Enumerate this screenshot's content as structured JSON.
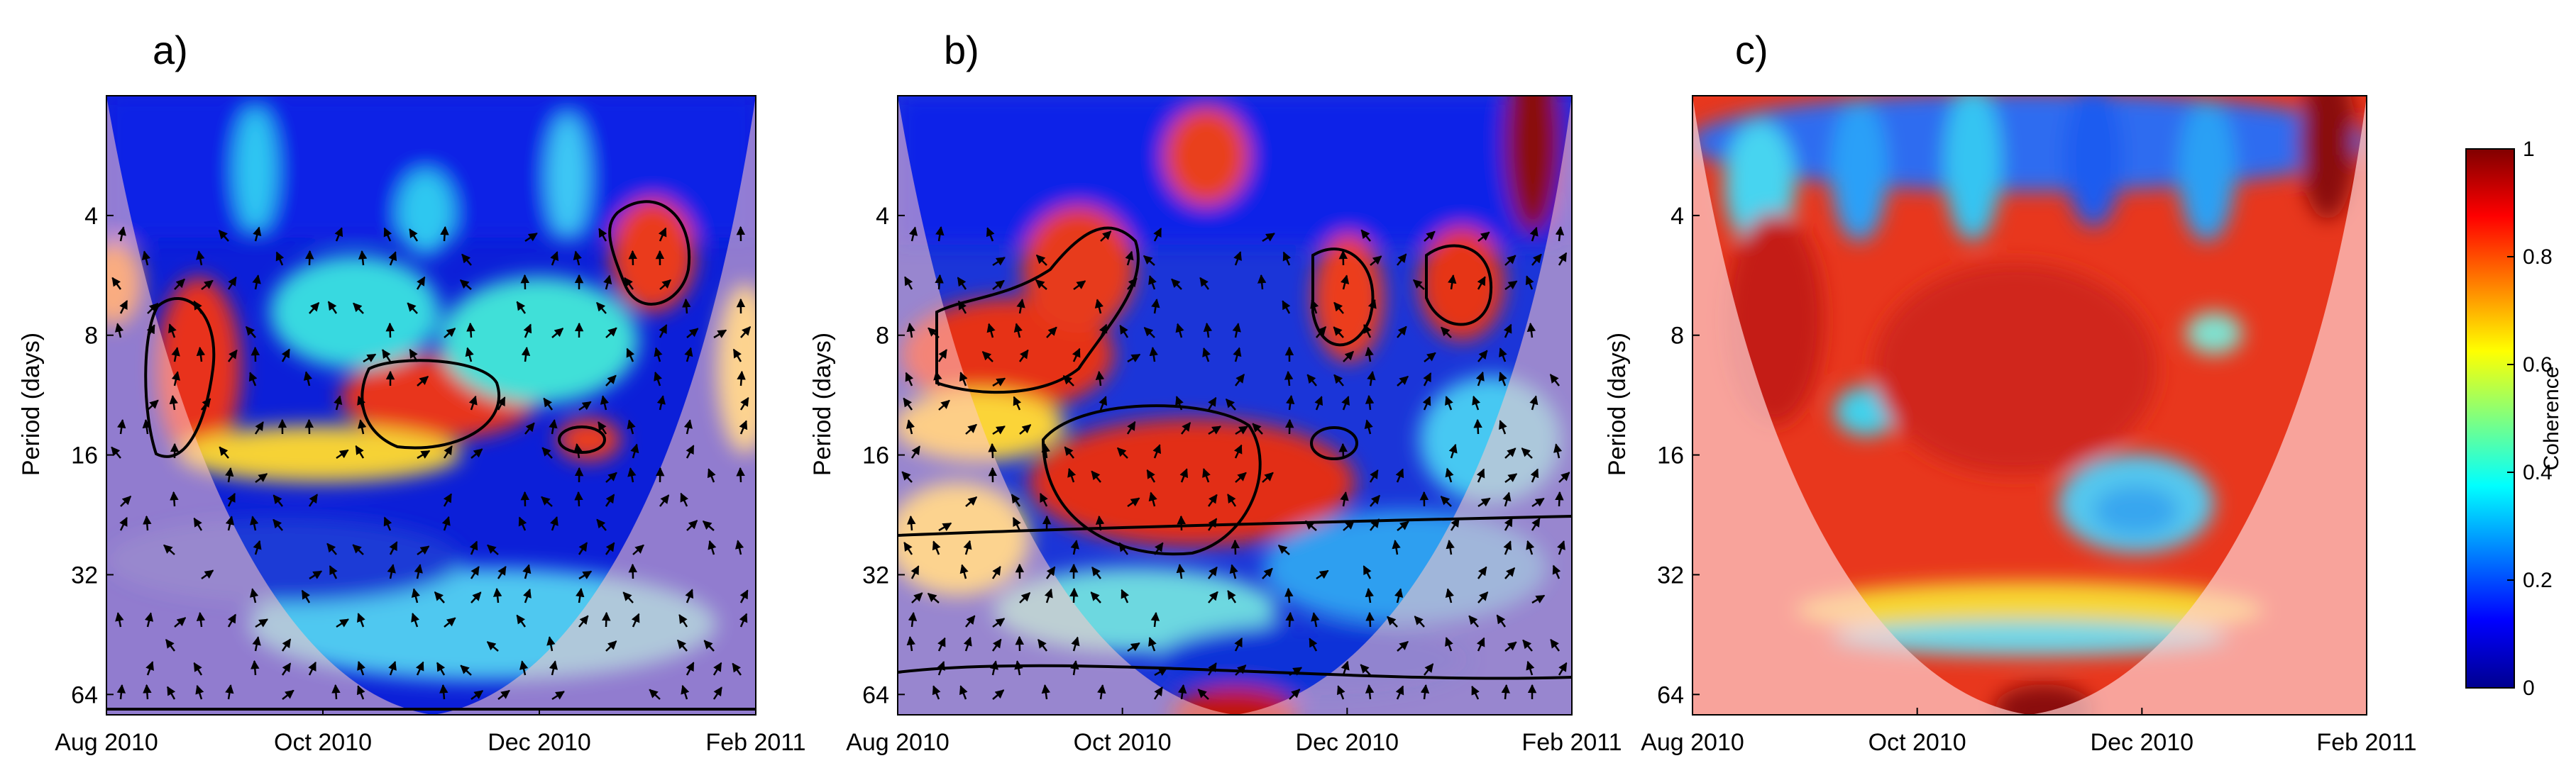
{
  "figure": {
    "panel_labels": [
      "a)",
      "b)",
      "c)"
    ]
  },
  "colorbar": {
    "label": "Coherence",
    "ticks": [
      "0",
      "0.2",
      "0.4",
      "0.6",
      "0.8",
      "1"
    ],
    "tick_values": [
      0,
      0.2,
      0.4,
      0.6,
      0.8,
      1
    ],
    "colormap": "jet"
  },
  "chart_data": [
    {
      "type": "heatmap",
      "title": "",
      "panel_label": "a)",
      "xlabel": "",
      "ylabel": "Period (days)",
      "x_tick_labels": [
        "Aug 2010",
        "Oct 2010",
        "Dec 2010",
        "Feb 2011"
      ],
      "y_tick_labels": [
        "4",
        "8",
        "16",
        "32",
        "64"
      ],
      "y_ticks": [
        4,
        8,
        16,
        32,
        64
      ],
      "y_scale": "log2",
      "ylim": [
        2,
        72
      ],
      "clim": [
        0,
        1
      ],
      "phase_arrows": true,
      "significance_contours": true,
      "cone_of_influence": true,
      "dominant_pattern": "low coherence (blue) above ~24 days, patchy high coherence (red) near 8-16 days"
    },
    {
      "type": "heatmap",
      "title": "",
      "panel_label": "b)",
      "xlabel": "",
      "ylabel": "Period (days)",
      "x_tick_labels": [
        "Aug 2010",
        "Oct 2010",
        "Dec 2010",
        "Feb 2011"
      ],
      "y_tick_labels": [
        "4",
        "8",
        "16",
        "32",
        "64"
      ],
      "y_ticks": [
        4,
        8,
        16,
        32,
        64
      ],
      "y_scale": "log2",
      "ylim": [
        2,
        72
      ],
      "clim": [
        0,
        1
      ],
      "phase_arrows": true,
      "significance_contours": true,
      "cone_of_influence": true,
      "dominant_pattern": "broad high coherence (red) at 12-28 days Aug-Nov 2010"
    },
    {
      "type": "heatmap",
      "title": "",
      "panel_label": "c)",
      "xlabel": "",
      "ylabel": "Period (days)",
      "x_tick_labels": [
        "Aug 2010",
        "Oct 2010",
        "Dec 2010",
        "Feb 2011"
      ],
      "y_tick_labels": [
        "4",
        "8",
        "16",
        "32",
        "64"
      ],
      "y_ticks": [
        4,
        8,
        16,
        32,
        64
      ],
      "y_scale": "log2",
      "ylim": [
        2,
        72
      ],
      "clim": [
        0,
        1
      ],
      "phase_arrows": false,
      "significance_contours": false,
      "cone_of_influence": true,
      "dominant_pattern": "high coherence (red) over most periods inside the cone"
    }
  ]
}
